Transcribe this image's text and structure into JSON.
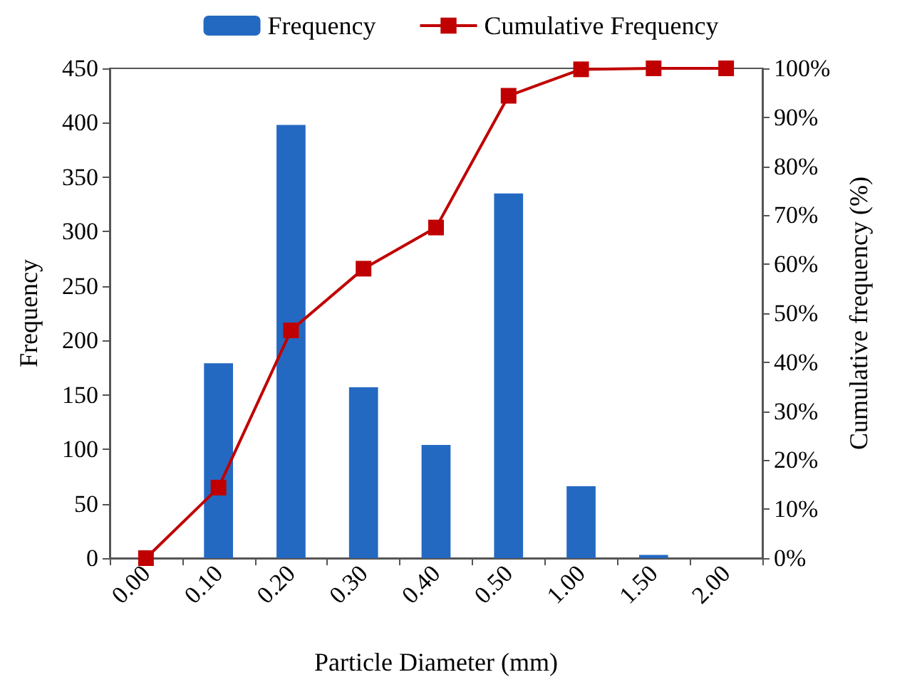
{
  "chart_data": {
    "type": "bar",
    "xlabel": "Particle Diameter (mm)",
    "ylabel": "Frequency",
    "y2label": "Cumulative frequency (%)",
    "categories": [
      "0.00",
      "0.10",
      "0.20",
      "0.30",
      "0.40",
      "0.50",
      "1.00",
      "1.50",
      "2.00"
    ],
    "series": [
      {
        "name": "Frequency",
        "color": "#2469c1",
        "values": [
          0,
          179,
          398,
          157,
          104,
          335,
          66,
          3,
          0
        ]
      },
      {
        "name": "Cumulative Frequency",
        "type": "line",
        "axis": "y2",
        "color": "#c00000",
        "marker": "square",
        "values": [
          0,
          14.4,
          46.5,
          59.1,
          67.5,
          94.4,
          99.8,
          100,
          100
        ]
      }
    ],
    "ylim": [
      0,
      450
    ],
    "yticks": [
      0,
      50,
      100,
      150,
      200,
      250,
      300,
      350,
      400,
      450
    ],
    "y2lim": [
      0,
      100
    ],
    "y2ticks": [
      {
        "value": 0,
        "label": "0%"
      },
      {
        "value": 10,
        "label": "10%"
      },
      {
        "value": 20,
        "label": "20%"
      },
      {
        "value": 30,
        "label": "30%"
      },
      {
        "value": 40,
        "label": "40%"
      },
      {
        "value": 50,
        "label": "50%"
      },
      {
        "value": 60,
        "label": "60%"
      },
      {
        "value": 70,
        "label": "70%"
      },
      {
        "value": 80,
        "label": "80%"
      },
      {
        "value": 90,
        "label": "90%"
      },
      {
        "value": 100,
        "label": "100%"
      }
    ],
    "grid": false,
    "legend": "top"
  }
}
